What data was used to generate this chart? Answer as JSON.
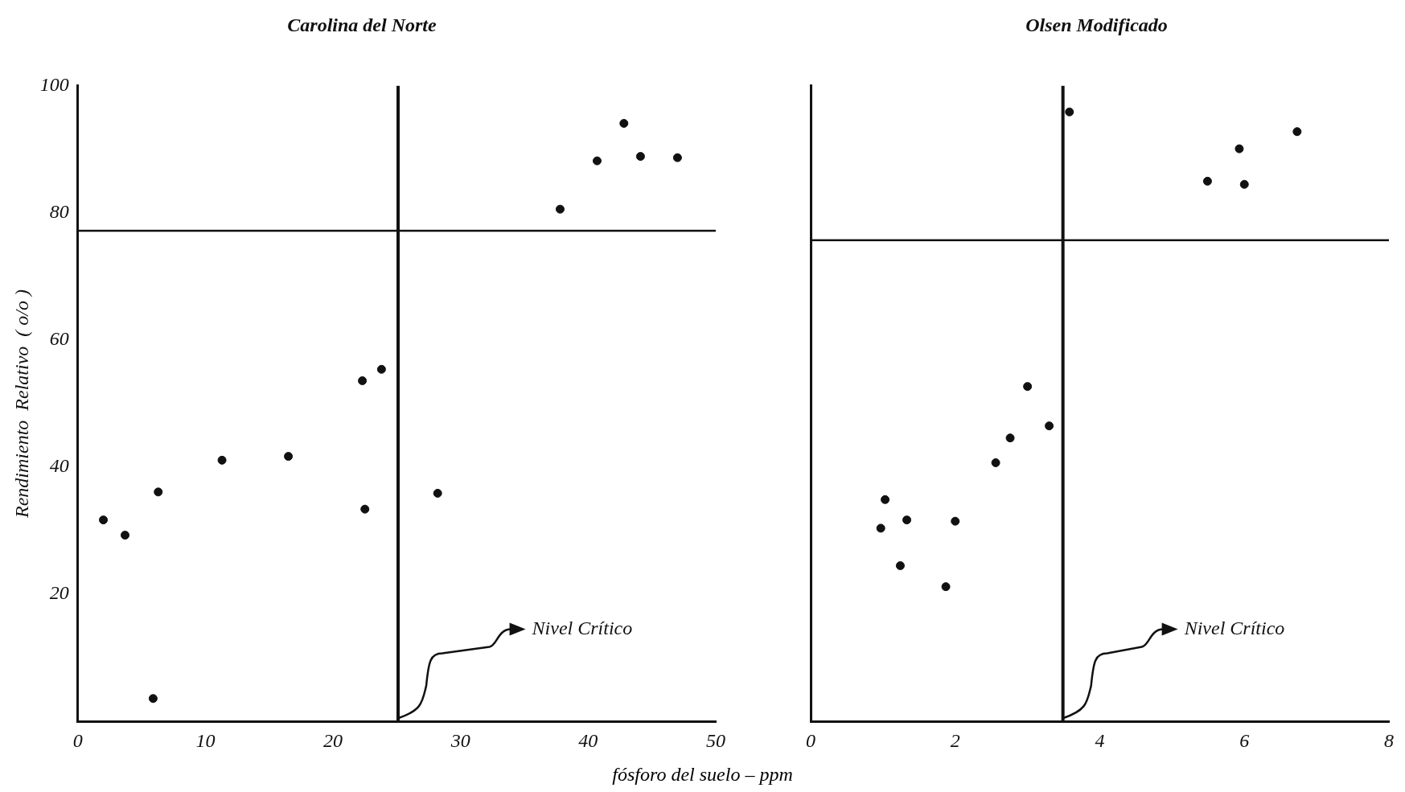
{
  "chart_data": [
    {
      "type": "scatter",
      "title": "Carolina del Norte",
      "xlabel": "fósforo del suelo – ppm",
      "ylabel": "Rendimiento  Relativo  ( o/o )",
      "marker": "circle",
      "x": [
        2.0,
        3.7,
        6.3,
        5.9,
        11.3,
        16.5,
        22.3,
        23.8,
        22.5,
        28.2,
        37.8,
        40.7,
        42.8,
        44.1,
        47.0
      ],
      "values": [
        31.7,
        29.3,
        36.1,
        3.6,
        41.1,
        41.7,
        53.6,
        55.4,
        33.4,
        35.9,
        80.6,
        88.2,
        94.1,
        88.9,
        88.7
      ],
      "color": "#111111",
      "xlim": [
        0,
        50
      ],
      "xticks": [
        0,
        10,
        20,
        30,
        40,
        50
      ],
      "ylim": [
        0,
        100
      ],
      "yticks": [
        20,
        40,
        60,
        80,
        100
      ],
      "ref_lines": [
        {
          "axis": "x",
          "value": 25.1,
          "color": "#111111"
        },
        {
          "axis": "y",
          "value": 77.2,
          "color": "#111111"
        }
      ],
      "annotations": [
        {
          "text": "Nivel Crítico",
          "x": 25.1,
          "y": 0
        }
      ]
    },
    {
      "type": "scatter",
      "title": "Olsen Modificado",
      "marker": "circle",
      "tick_labels": "x",
      "x": [
        3.58,
        6.73,
        5.93,
        5.49,
        6.0,
        3.0,
        3.3,
        2.76,
        2.56,
        1.03,
        1.33,
        0.97,
        2.0,
        1.24,
        1.87
      ],
      "values": [
        95.9,
        92.8,
        90.1,
        85.0,
        84.5,
        52.7,
        46.5,
        44.6,
        40.7,
        34.9,
        31.7,
        30.4,
        31.5,
        24.5,
        21.2
      ],
      "color": "#111111",
      "xlim": [
        0,
        8
      ],
      "xticks": [
        0,
        2,
        4,
        6,
        8
      ],
      "ylim": [
        0,
        100
      ],
      "yticks": [
        20,
        40,
        60,
        80,
        100
      ],
      "ref_lines": [
        {
          "axis": "x",
          "value": 3.49,
          "color": "#111111"
        },
        {
          "axis": "y",
          "value": 75.7,
          "color": "#111111"
        }
      ],
      "annotations": [
        {
          "text": "Nivel Crítico",
          "x": 3.49,
          "y": 0
        }
      ]
    }
  ]
}
